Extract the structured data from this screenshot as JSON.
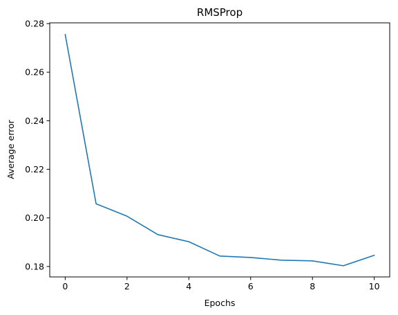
{
  "chart_data": {
    "type": "line",
    "title": "RMSProp",
    "xlabel": "Epochs",
    "ylabel": "Average error",
    "xlim": [
      -0.5,
      10.5
    ],
    "ylim": [
      0.1757,
      0.2803
    ],
    "x_ticks": [
      0,
      2,
      4,
      6,
      8,
      10
    ],
    "y_ticks": [
      0.18,
      0.2,
      0.22,
      0.24,
      0.26,
      0.28
    ],
    "y_tick_labels": [
      "0.18",
      "0.20",
      "0.22",
      "0.24",
      "0.26",
      "0.28"
    ],
    "grid": false,
    "series": [
      {
        "color": "#1f77b4",
        "x": [
          0,
          1,
          2,
          3,
          4,
          5,
          6,
          7,
          8,
          9,
          10
        ],
        "values": [
          0.2755,
          0.2058,
          0.2007,
          0.1931,
          0.1902,
          0.1843,
          0.1837,
          0.1826,
          0.1823,
          0.1803,
          0.1846
        ]
      }
    ]
  }
}
